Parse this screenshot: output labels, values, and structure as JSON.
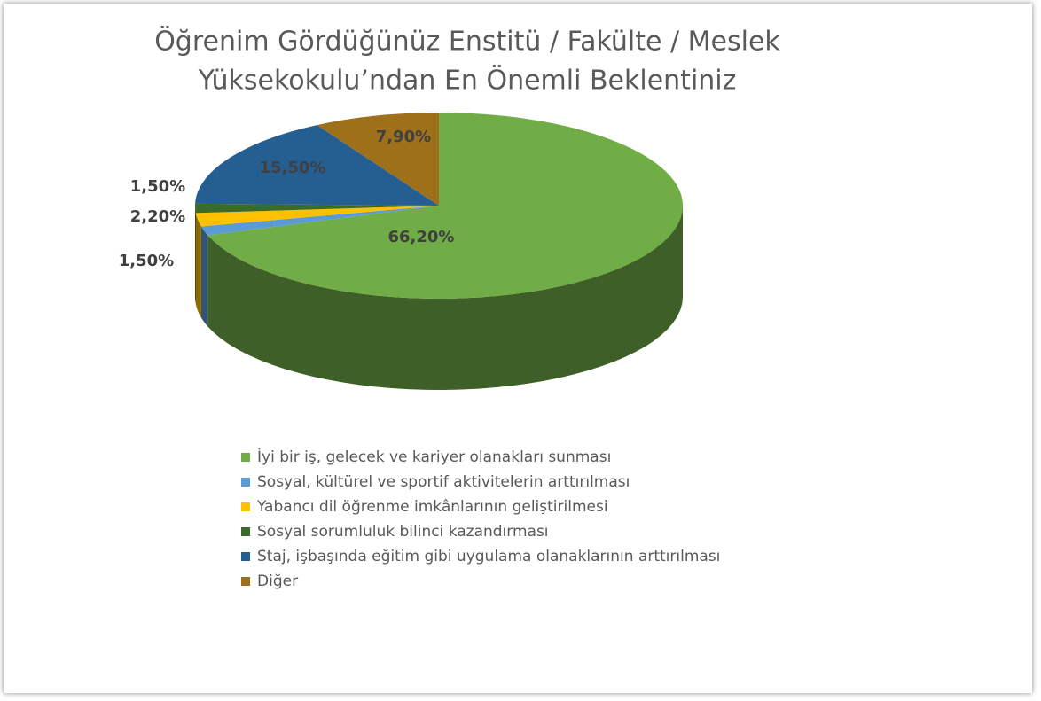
{
  "chart_data": {
    "type": "pie",
    "title": "Öğrenim Gördüğünüz Enstitü / Fakülte / Meslek",
    "subtitle": "Yüksekokulu’ndan En Önemli Beklentiniz",
    "categories": [
      "İyi bir iş, gelecek ve kariyer olanakları sunması",
      "Sosyal, kültürel ve sportif aktivitelerin arttırılması",
      "Yabancı dil öğrenme imkânlarının geliştirilmesi",
      "Sosyal sorumluluk bilinci kazandırması",
      "Staj, işbaşında eğitim gibi uygulama olanaklarının arttırılması",
      "Diğer"
    ],
    "values": [
      66.2,
      1.5,
      2.2,
      1.5,
      15.5,
      7.9
    ],
    "value_labels": [
      "66,20%",
      "1,50%",
      "2,20%",
      "1,50%",
      "15,50%",
      "7,90%"
    ],
    "colors": [
      "#70ad47",
      "#5b9bd5",
      "#ffc000",
      "#3a6b2a",
      "#255e91",
      "#9e7019"
    ],
    "legend": "bottom"
  }
}
